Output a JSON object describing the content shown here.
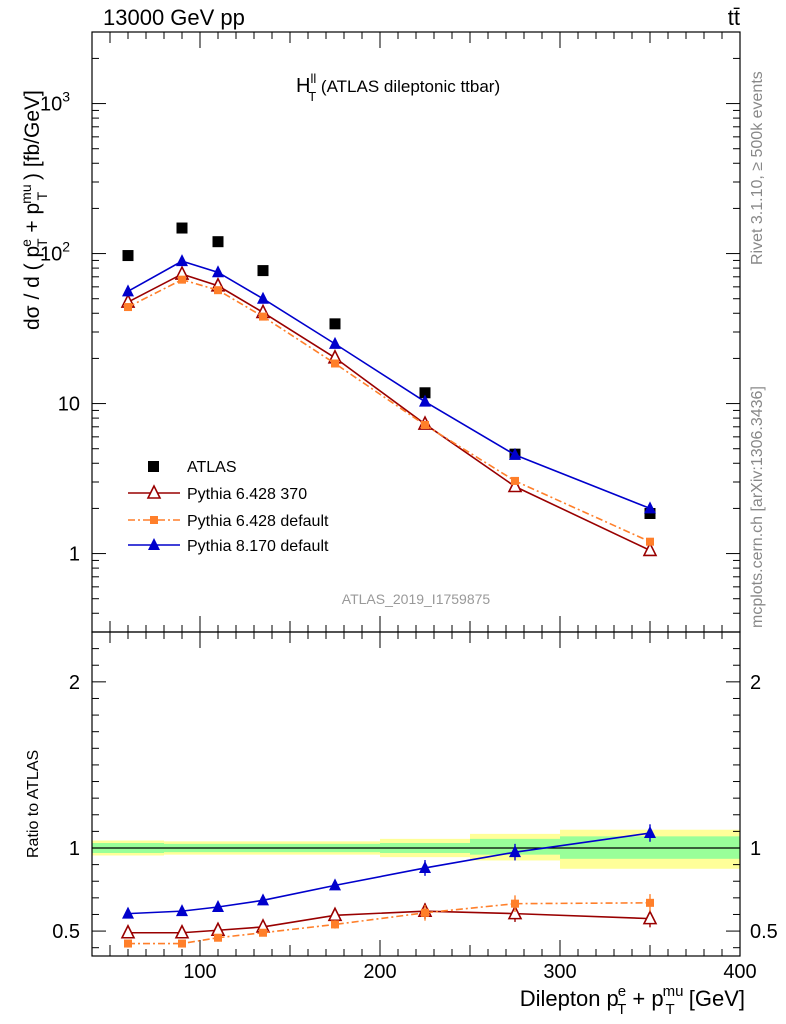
{
  "header": {
    "energy_label": "13000 GeV pp",
    "process_label": "tt̄"
  },
  "side_labels": {
    "rivet": "Rivet 3.1.10, ≥ 500k events",
    "mcplots": "mcplots.cern.ch [arXiv:1306.3436]"
  },
  "plot_title": {
    "main": "H",
    "sup": "ll",
    "sub": "T",
    "suffix": " (ATLAS dileptonic ttbar)"
  },
  "analysis_id": "ATLAS_2019_I1759875",
  "colors": {
    "atlas": "#000000",
    "p6_370": "#990000",
    "p6_default": "#ff7f2a",
    "p8": "#0000cc",
    "band_green": "#99ff99",
    "band_yellow": "#ffff99"
  },
  "chart_data": [
    {
      "type": "scatter",
      "panel": "main",
      "ylabel": "dσ / d ( p_T^e + p_T^mu ) [fb/GeV]",
      "log_y": true,
      "xlim": [
        40,
        400
      ],
      "ylim": [
        0.3,
        3000
      ],
      "y_tick_labels": [
        "1",
        "10",
        "10^2",
        "10^3"
      ],
      "series": [
        {
          "name": "ATLAS",
          "marker": "filled-square",
          "x": [
            60,
            90,
            110,
            135,
            175,
            225,
            275,
            350
          ],
          "y": [
            97,
            148,
            120,
            77,
            34,
            11.8,
            4.6,
            1.85
          ]
        },
        {
          "name": "Pythia 6.428 370",
          "marker": "open-triangle",
          "line": "solid",
          "x": [
            60,
            90,
            110,
            135,
            175,
            225,
            275,
            350
          ],
          "y": [
            47.5,
            73,
            61,
            40.5,
            20.2,
            7.3,
            2.8,
            1.05
          ]
        },
        {
          "name": "Pythia 6.428 default",
          "marker": "filled-square-small",
          "line": "dashdot",
          "x": [
            60,
            90,
            110,
            135,
            175,
            225,
            275,
            350
          ],
          "y": [
            44,
            67,
            57,
            38,
            18.5,
            7.2,
            3.05,
            1.2
          ]
        },
        {
          "name": "Pythia 8.170 default",
          "marker": "filled-triangle",
          "line": "solid",
          "x": [
            60,
            90,
            110,
            135,
            175,
            225,
            275,
            350
          ],
          "y": [
            56,
            89,
            75,
            50,
            25,
            10.3,
            4.55,
            2.0
          ]
        }
      ]
    },
    {
      "type": "line",
      "panel": "ratio",
      "xlabel": "Dilepton p_T^e + p_T^mu [GeV]",
      "ylabel": "Ratio to ATLAS",
      "xlim": [
        40,
        400
      ],
      "ylim": [
        0.35,
        2.3
      ],
      "x_tick_labels": [
        "100",
        "200",
        "300",
        "400"
      ],
      "y_tick_labels": [
        "0.5",
        "1",
        "2"
      ],
      "bins": [
        {
          "x0": 40,
          "x1": 80,
          "green": [
            0.97,
            1.03
          ],
          "yellow": [
            0.955,
            1.045
          ]
        },
        {
          "x0": 80,
          "x1": 100,
          "green": [
            0.975,
            1.025
          ],
          "yellow": [
            0.96,
            1.04
          ]
        },
        {
          "x0": 100,
          "x1": 120,
          "green": [
            0.975,
            1.025
          ],
          "yellow": [
            0.96,
            1.04
          ]
        },
        {
          "x0": 120,
          "x1": 150,
          "green": [
            0.975,
            1.025
          ],
          "yellow": [
            0.96,
            1.04
          ]
        },
        {
          "x0": 150,
          "x1": 200,
          "green": [
            0.975,
            1.025
          ],
          "yellow": [
            0.96,
            1.04
          ]
        },
        {
          "x0": 200,
          "x1": 250,
          "green": [
            0.97,
            1.03
          ],
          "yellow": [
            0.945,
            1.055
          ]
        },
        {
          "x0": 250,
          "x1": 300,
          "green": [
            0.96,
            1.055
          ],
          "yellow": [
            0.925,
            1.085
          ]
        },
        {
          "x0": 300,
          "x1": 400,
          "green": [
            0.935,
            1.07
          ],
          "yellow": [
            0.875,
            1.11
          ]
        }
      ],
      "series": [
        {
          "name": "Pythia 6.428 370",
          "x": [
            60,
            90,
            110,
            135,
            175,
            225,
            275,
            350
          ],
          "y": [
            0.49,
            0.49,
            0.505,
            0.525,
            0.595,
            0.62,
            0.605,
            0.575
          ]
        },
        {
          "name": "Pythia 6.428 default",
          "x": [
            60,
            90,
            110,
            135,
            175,
            225,
            275,
            350
          ],
          "y": [
            0.425,
            0.425,
            0.46,
            0.49,
            0.54,
            0.61,
            0.665,
            0.67
          ]
        },
        {
          "name": "Pythia 8.170 default",
          "x": [
            60,
            90,
            110,
            135,
            175,
            225,
            275,
            350
          ],
          "y": [
            0.605,
            0.62,
            0.645,
            0.685,
            0.775,
            0.88,
            0.975,
            1.09
          ]
        }
      ]
    }
  ]
}
